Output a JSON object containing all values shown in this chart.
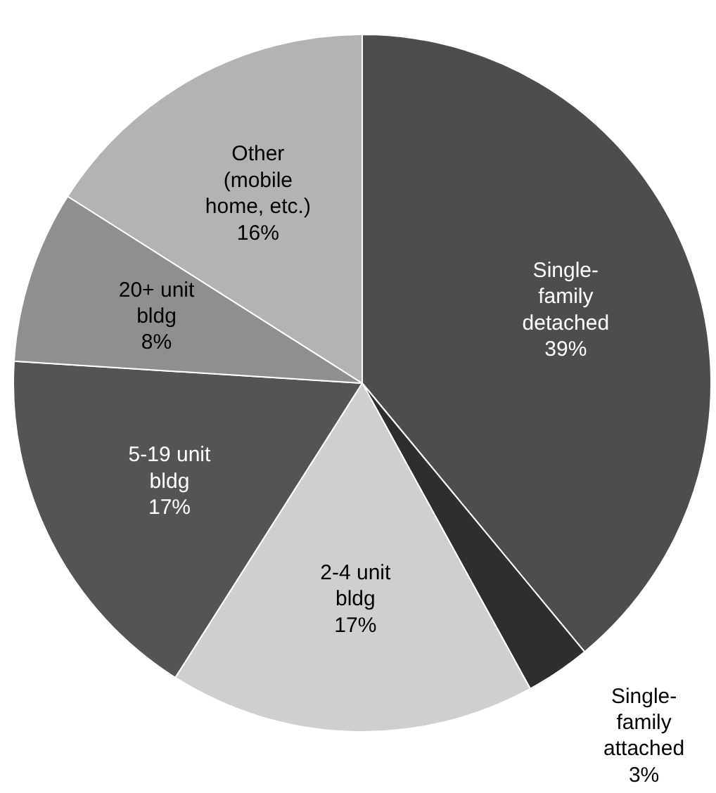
{
  "chart_data": {
    "type": "pie",
    "categories": [
      "Single-\nfamily\ndetached",
      "Single-\nfamily\nattached",
      "2-4 unit\nbldg",
      "5-19 unit\nbldg",
      "20+ unit\nbldg",
      "Other\n(mobile\nhome, etc.)"
    ],
    "values": [
      39,
      3,
      17,
      17,
      8,
      16
    ],
    "value_labels": [
      "39%",
      "3%",
      "17%",
      "17%",
      "8%",
      "16%"
    ],
    "colors": [
      "#4d4d4d",
      "#2e2e2e",
      "#cfcfcf",
      "#545454",
      "#8f8f8f",
      "#b3b3b3"
    ]
  }
}
